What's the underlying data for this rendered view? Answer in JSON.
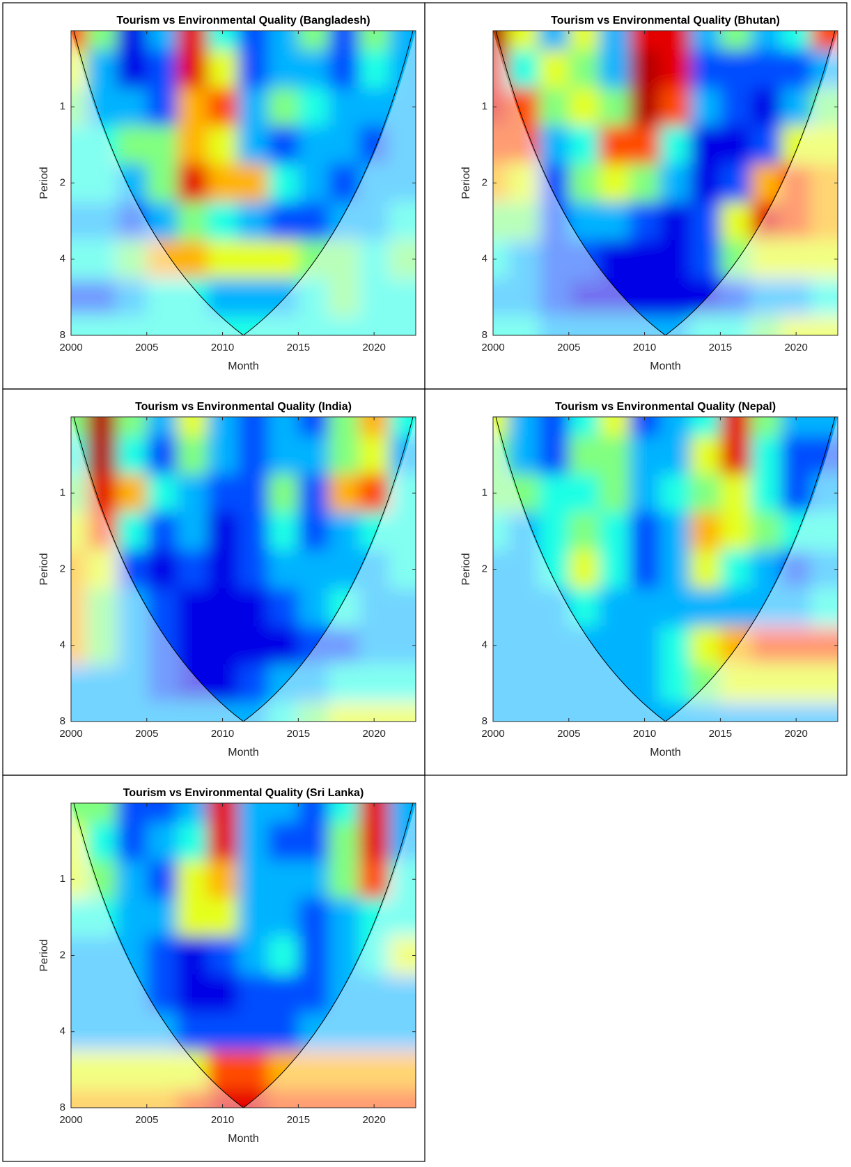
{
  "chart_data": [
    {
      "type": "heatmap",
      "title": "Tourism vs Environmental Quality (Bangladesh)",
      "xlabel": "Month",
      "ylabel": "Period",
      "x": [
        2000,
        2002,
        2004,
        2006,
        2008,
        2010,
        2012,
        2014,
        2016,
        2018,
        2020,
        2022
      ],
      "y": [
        0.5,
        0.71,
        1,
        1.41,
        2,
        2.83,
        4,
        5.66,
        8
      ],
      "values": [
        [
          0.8,
          0.5,
          0.1,
          0.3,
          0.9,
          0.4,
          0.2,
          0.3,
          0.5,
          0.2,
          0.5,
          0.3
        ],
        [
          0.6,
          0.3,
          0.1,
          0.2,
          0.9,
          0.6,
          0.2,
          0.3,
          0.3,
          0.2,
          0.4,
          0.3
        ],
        [
          0.5,
          0.3,
          0.3,
          0.2,
          0.7,
          0.8,
          0.3,
          0.5,
          0.4,
          0.3,
          0.3,
          0.3
        ],
        [
          0.4,
          0.4,
          0.5,
          0.5,
          0.7,
          0.6,
          0.3,
          0.2,
          0.3,
          0.3,
          0.2,
          0.3
        ],
        [
          0.4,
          0.4,
          0.3,
          0.5,
          0.9,
          0.7,
          0.7,
          0.4,
          0.3,
          0.2,
          0.3,
          0.3
        ],
        [
          0.3,
          0.3,
          0.2,
          0.3,
          0.5,
          0.4,
          0.3,
          0.2,
          0.2,
          0.3,
          0.3,
          0.4
        ],
        [
          0.4,
          0.4,
          0.5,
          0.7,
          0.7,
          0.6,
          0.6,
          0.6,
          0.5,
          0.5,
          0.4,
          0.5
        ],
        [
          0.2,
          0.2,
          0.3,
          0.4,
          0.4,
          0.3,
          0.3,
          0.3,
          0.4,
          0.5,
          0.4,
          0.4
        ],
        [
          0.4,
          0.4,
          0.4,
          0.4,
          0.4,
          0.4,
          0.4,
          0.4,
          0.4,
          0.4,
          0.4,
          0.4
        ]
      ],
      "xlim": [
        2000,
        2022.75
      ],
      "xticks": [
        2000,
        2005,
        2010,
        2015,
        2020
      ],
      "ylim": [
        0.5,
        8
      ],
      "yticks": [
        1,
        2,
        4,
        8
      ],
      "yscale": "log",
      "yreversed": true,
      "colormap": "jet"
    },
    {
      "type": "heatmap",
      "title": "Tourism vs Environmental Quality (Bhutan)",
      "xlabel": "Month",
      "ylabel": "Period",
      "x": [
        2000,
        2002,
        2004,
        2006,
        2008,
        2010,
        2012,
        2014,
        2016,
        2018,
        2020,
        2022
      ],
      "y": [
        0.5,
        0.71,
        1,
        1.41,
        2,
        2.83,
        4,
        5.66,
        8
      ],
      "values": [
        [
          0.95,
          0.6,
          0.3,
          0.6,
          0.3,
          0.9,
          0.9,
          0.3,
          0.5,
          0.3,
          0.4,
          0.8
        ],
        [
          0.9,
          0.4,
          0.6,
          0.5,
          0.3,
          0.95,
          0.9,
          0.2,
          0.2,
          0.2,
          0.2,
          0.3
        ],
        [
          0.9,
          0.8,
          0.5,
          0.6,
          0.5,
          0.95,
          0.8,
          0.3,
          0.2,
          0.1,
          0.3,
          0.5
        ],
        [
          0.8,
          0.8,
          0.3,
          0.4,
          0.8,
          0.8,
          0.4,
          0.1,
          0.1,
          0.2,
          0.6,
          0.6
        ],
        [
          0.7,
          0.6,
          0.2,
          0.5,
          0.6,
          0.5,
          0.3,
          0.1,
          0.2,
          0.7,
          0.8,
          0.7
        ],
        [
          0.5,
          0.5,
          0.2,
          0.3,
          0.3,
          0.2,
          0.1,
          0.2,
          0.6,
          0.9,
          0.8,
          0.7
        ],
        [
          0.4,
          0.3,
          0.2,
          0.2,
          0.1,
          0.1,
          0.1,
          0.2,
          0.5,
          0.6,
          0.6,
          0.6
        ],
        [
          0.3,
          0.3,
          0.2,
          0.1,
          0.1,
          0.1,
          0.1,
          0.1,
          0.2,
          0.3,
          0.3,
          0.4
        ],
        [
          0.4,
          0.4,
          0.3,
          0.3,
          0.3,
          0.3,
          0.3,
          0.4,
          0.4,
          0.5,
          0.6,
          0.6
        ]
      ],
      "xlim": [
        2000,
        2022.75
      ],
      "xticks": [
        2000,
        2005,
        2010,
        2015,
        2020
      ],
      "ylim": [
        0.5,
        8
      ],
      "yticks": [
        1,
        2,
        4,
        8
      ],
      "yscale": "log",
      "yreversed": true,
      "colormap": "jet"
    },
    {
      "type": "heatmap",
      "title": "Tourism vs Environmental Quality (India)",
      "xlabel": "Month",
      "ylabel": "Period",
      "x": [
        2000,
        2002,
        2004,
        2006,
        2008,
        2010,
        2012,
        2014,
        2016,
        2018,
        2020,
        2022
      ],
      "y": [
        0.5,
        0.71,
        1,
        1.41,
        2,
        2.83,
        4,
        5.66,
        8
      ],
      "values": [
        [
          0.5,
          0.95,
          0.5,
          0.3,
          0.6,
          0.3,
          0.2,
          0.3,
          0.2,
          0.5,
          0.7,
          0.4
        ],
        [
          0.4,
          0.95,
          0.4,
          0.2,
          0.5,
          0.3,
          0.2,
          0.3,
          0.3,
          0.5,
          0.6,
          0.3
        ],
        [
          0.5,
          0.9,
          0.7,
          0.4,
          0.3,
          0.2,
          0.2,
          0.5,
          0.2,
          0.7,
          0.8,
          0.4
        ],
        [
          0.6,
          0.8,
          0.4,
          0.2,
          0.3,
          0.1,
          0.2,
          0.4,
          0.2,
          0.3,
          0.4,
          0.4
        ],
        [
          0.7,
          0.6,
          0.2,
          0.1,
          0.2,
          0.1,
          0.2,
          0.3,
          0.3,
          0.3,
          0.3,
          0.4
        ],
        [
          0.7,
          0.5,
          0.3,
          0.2,
          0.1,
          0.1,
          0.1,
          0.2,
          0.3,
          0.4,
          0.3,
          0.3
        ],
        [
          0.7,
          0.5,
          0.3,
          0.2,
          0.1,
          0.1,
          0.1,
          0.1,
          0.2,
          0.2,
          0.3,
          0.3
        ],
        [
          0.3,
          0.3,
          0.3,
          0.2,
          0.1,
          0.1,
          0.2,
          0.3,
          0.3,
          0.4,
          0.4,
          0.4
        ],
        [
          0.3,
          0.3,
          0.3,
          0.3,
          0.3,
          0.3,
          0.3,
          0.4,
          0.5,
          0.6,
          0.6,
          0.6
        ]
      ],
      "xlim": [
        2000,
        2022.75
      ],
      "xticks": [
        2000,
        2005,
        2010,
        2015,
        2020
      ],
      "ylim": [
        0.5,
        8
      ],
      "yticks": [
        1,
        2,
        4,
        8
      ],
      "yscale": "log",
      "yreversed": true,
      "colormap": "jet"
    },
    {
      "type": "heatmap",
      "title": "Tourism vs Environmental Quality (Nepal)",
      "xlabel": "Month",
      "ylabel": "Period",
      "x": [
        2000,
        2002,
        2004,
        2006,
        2008,
        2010,
        2012,
        2014,
        2016,
        2018,
        2020,
        2022
      ],
      "y": [
        0.5,
        0.71,
        1,
        1.41,
        2,
        2.83,
        4,
        5.66,
        8
      ],
      "values": [
        [
          0.6,
          0.3,
          0.2,
          0.4,
          0.6,
          0.2,
          0.3,
          0.4,
          0.9,
          0.5,
          0.3,
          0.3
        ],
        [
          0.5,
          0.3,
          0.2,
          0.5,
          0.5,
          0.3,
          0.3,
          0.6,
          0.9,
          0.4,
          0.2,
          0.2
        ],
        [
          0.5,
          0.5,
          0.4,
          0.4,
          0.5,
          0.3,
          0.4,
          0.5,
          0.6,
          0.4,
          0.2,
          0.3
        ],
        [
          0.4,
          0.3,
          0.4,
          0.5,
          0.4,
          0.2,
          0.3,
          0.7,
          0.6,
          0.5,
          0.4,
          0.4
        ],
        [
          0.3,
          0.3,
          0.4,
          0.6,
          0.4,
          0.2,
          0.3,
          0.6,
          0.4,
          0.3,
          0.2,
          0.3
        ],
        [
          0.3,
          0.3,
          0.3,
          0.4,
          0.3,
          0.3,
          0.3,
          0.3,
          0.3,
          0.3,
          0.3,
          0.4
        ],
        [
          0.3,
          0.3,
          0.3,
          0.3,
          0.3,
          0.3,
          0.4,
          0.6,
          0.7,
          0.8,
          0.8,
          0.8
        ],
        [
          0.3,
          0.3,
          0.3,
          0.3,
          0.3,
          0.3,
          0.4,
          0.5,
          0.6,
          0.6,
          0.6,
          0.6
        ],
        [
          0.3,
          0.3,
          0.3,
          0.3,
          0.3,
          0.3,
          0.3,
          0.3,
          0.3,
          0.3,
          0.3,
          0.3
        ]
      ],
      "xlim": [
        2000,
        2022.75
      ],
      "xticks": [
        2000,
        2005,
        2010,
        2015,
        2020
      ],
      "ylim": [
        0.5,
        8
      ],
      "yticks": [
        1,
        2,
        4,
        8
      ],
      "yscale": "log",
      "yreversed": true,
      "colormap": "jet"
    },
    {
      "type": "heatmap",
      "title": "Tourism vs Environmental Quality (Sri Lanka)",
      "xlabel": "Month",
      "ylabel": "Period",
      "x": [
        2000,
        2002,
        2004,
        2006,
        2008,
        2010,
        2012,
        2014,
        2016,
        2018,
        2020,
        2022
      ],
      "y": [
        0.5,
        0.71,
        1,
        1.41,
        2,
        2.83,
        4,
        5.66,
        8
      ],
      "values": [
        [
          0.5,
          0.5,
          0.2,
          0.2,
          0.3,
          0.9,
          0.3,
          0.3,
          0.2,
          0.4,
          0.9,
          0.3
        ],
        [
          0.6,
          0.4,
          0.2,
          0.3,
          0.4,
          0.9,
          0.3,
          0.2,
          0.2,
          0.5,
          0.9,
          0.3
        ],
        [
          0.6,
          0.5,
          0.3,
          0.2,
          0.6,
          0.7,
          0.3,
          0.3,
          0.3,
          0.5,
          0.8,
          0.4
        ],
        [
          0.4,
          0.4,
          0.3,
          0.3,
          0.6,
          0.6,
          0.3,
          0.3,
          0.2,
          0.3,
          0.4,
          0.4
        ],
        [
          0.3,
          0.3,
          0.3,
          0.2,
          0.1,
          0.2,
          0.3,
          0.4,
          0.2,
          0.3,
          0.4,
          0.6
        ],
        [
          0.3,
          0.3,
          0.3,
          0.2,
          0.1,
          0.1,
          0.2,
          0.2,
          0.2,
          0.3,
          0.3,
          0.3
        ],
        [
          0.3,
          0.3,
          0.3,
          0.3,
          0.2,
          0.2,
          0.2,
          0.2,
          0.3,
          0.3,
          0.3,
          0.3
        ],
        [
          0.6,
          0.6,
          0.6,
          0.6,
          0.6,
          0.8,
          0.8,
          0.7,
          0.7,
          0.7,
          0.7,
          0.7
        ],
        [
          0.7,
          0.7,
          0.7,
          0.7,
          0.8,
          0.9,
          0.9,
          0.8,
          0.8,
          0.8,
          0.8,
          0.8
        ]
      ],
      "xlim": [
        2000,
        2022.75
      ],
      "xticks": [
        2000,
        2005,
        2010,
        2015,
        2020
      ],
      "ylim": [
        0.5,
        8
      ],
      "yticks": [
        1,
        2,
        4,
        8
      ],
      "yscale": "log",
      "yreversed": true,
      "colormap": "jet"
    }
  ]
}
